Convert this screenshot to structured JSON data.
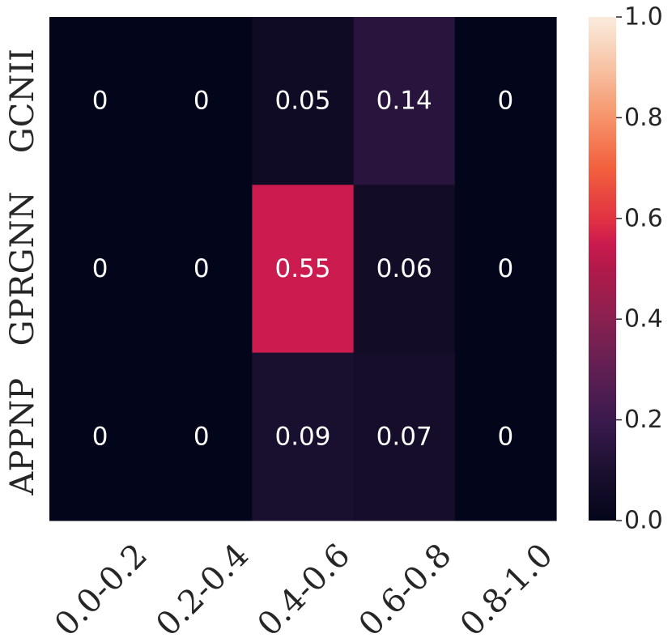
{
  "chart_data": {
    "type": "heatmap",
    "title": "",
    "xlabel": "",
    "ylabel": "",
    "x_categories": [
      "0.0-0.2",
      "0.2-0.4",
      "0.4-0.6",
      "0.6-0.8",
      "0.8-1.0"
    ],
    "y_categories": [
      "GCNII",
      "GPRGNN",
      "APPNP"
    ],
    "values": [
      [
        0,
        0,
        0.05,
        0.14,
        0
      ],
      [
        0,
        0,
        0.55,
        0.06,
        0
      ],
      [
        0,
        0,
        0.09,
        0.07,
        0
      ]
    ],
    "cell_labels": [
      [
        "0",
        "0",
        "0.05",
        "0.14",
        "0"
      ],
      [
        "0",
        "0",
        "0.55",
        "0.06",
        "0"
      ],
      [
        "0",
        "0",
        "0.09",
        "0.07",
        "0"
      ]
    ],
    "colormap": "rocket",
    "colorbar": {
      "vmin": 0.0,
      "vmax": 1.0,
      "ticks": [
        0.0,
        0.2,
        0.4,
        0.6,
        0.8,
        1.0
      ],
      "tick_labels": [
        "0.0",
        "0.2",
        "0.4",
        "0.6",
        "0.8",
        "1.0"
      ]
    },
    "x_tick_rotation_deg": 45
  }
}
